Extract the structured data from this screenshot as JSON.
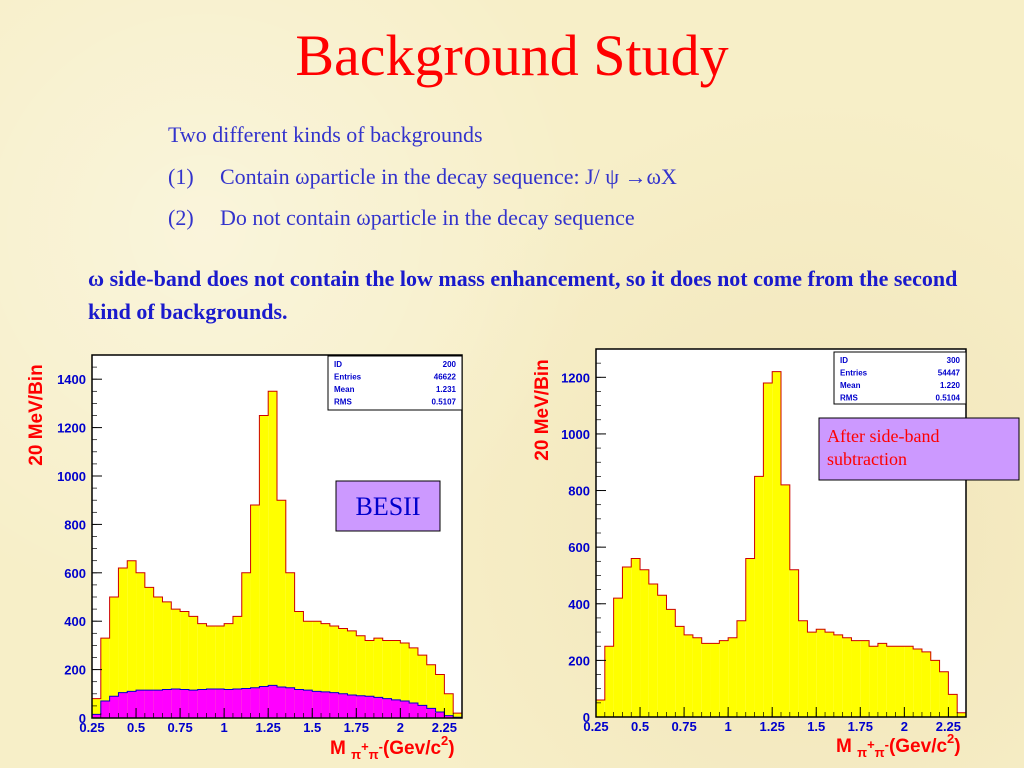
{
  "slide": {
    "title": "Background Study",
    "intro": "Two different kinds of backgrounds",
    "items": [
      {
        "num": "(1)",
        "text": "Contain ωparticle in the decay sequence: J/ ψ →ωX"
      },
      {
        "num": "(2)",
        "text": "Do not contain ωparticle in the decay sequence"
      }
    ],
    "note": "ω side-band  does not contain the low mass enhancement, so it does not come from the second kind of backgrounds."
  },
  "colors": {
    "title": "#ff0000",
    "body_text": "#3333cc",
    "histogram_fill": "#ffff00",
    "sideband_fill": "#ff00ff",
    "axis_label": "#ff0000",
    "tick_label": "#0000cc",
    "label_box": "#cc99ff"
  },
  "chart_data": [
    {
      "type": "bar",
      "title": "",
      "ylabel": "20 MeV/Bin",
      "xlabel": "M π+π-(Gev/c2)",
      "xlabel_parts": {
        "m": "M",
        "pi1": "π",
        "plus": "+",
        "pi2": "π",
        "minus": "-",
        "unit": "(Gev/c",
        "exp": "2",
        "close": ")"
      },
      "xlim": [
        0.25,
        2.35
      ],
      "ylim": [
        0,
        1500
      ],
      "xticks": [
        "0.25",
        "0.5",
        "0.75",
        "1",
        "1.25",
        "1.5",
        "1.75",
        "2",
        "2.25"
      ],
      "yticks": [
        "0",
        "200",
        "400",
        "600",
        "800",
        "1000",
        "1200",
        "1400"
      ],
      "stats": [
        {
          "label": "ID",
          "value": "200"
        },
        {
          "label": "Entries",
          "value": "46622"
        },
        {
          "label": "Mean",
          "value": "1.231"
        },
        {
          "label": "RMS",
          "value": "0.5107"
        }
      ],
      "annotation": "BESII",
      "series": [
        {
          "role": "total",
          "x": [
            0.25,
            0.3,
            0.35,
            0.4,
            0.45,
            0.5,
            0.55,
            0.6,
            0.65,
            0.7,
            0.75,
            0.8,
            0.85,
            0.9,
            0.95,
            1.0,
            1.05,
            1.1,
            1.15,
            1.2,
            1.25,
            1.3,
            1.35,
            1.4,
            1.45,
            1.5,
            1.55,
            1.6,
            1.65,
            1.7,
            1.75,
            1.8,
            1.85,
            1.9,
            1.95,
            2.0,
            2.05,
            2.1,
            2.15,
            2.2,
            2.25,
            2.3
          ],
          "values": [
            80,
            330,
            500,
            620,
            650,
            600,
            540,
            500,
            480,
            450,
            440,
            420,
            390,
            380,
            380,
            390,
            420,
            600,
            880,
            1250,
            1350,
            900,
            600,
            440,
            400,
            400,
            390,
            380,
            370,
            360,
            340,
            320,
            330,
            320,
            320,
            310,
            290,
            260,
            220,
            180,
            100,
            20
          ]
        },
        {
          "role": "sideband",
          "x": [
            0.25,
            0.3,
            0.35,
            0.4,
            0.45,
            0.5,
            0.55,
            0.6,
            0.65,
            0.7,
            0.75,
            0.8,
            0.85,
            0.9,
            0.95,
            1.0,
            1.05,
            1.1,
            1.15,
            1.2,
            1.25,
            1.3,
            1.35,
            1.4,
            1.45,
            1.5,
            1.55,
            1.6,
            1.65,
            1.7,
            1.75,
            1.8,
            1.85,
            1.9,
            1.95,
            2.0,
            2.05,
            2.1,
            2.15,
            2.2,
            2.25,
            2.3
          ],
          "values": [
            15,
            70,
            90,
            105,
            110,
            115,
            115,
            115,
            118,
            120,
            118,
            115,
            118,
            120,
            120,
            118,
            120,
            122,
            125,
            130,
            135,
            128,
            125,
            118,
            115,
            110,
            108,
            105,
            100,
            95,
            92,
            90,
            85,
            80,
            75,
            70,
            62,
            52,
            40,
            25,
            10,
            3
          ]
        }
      ]
    },
    {
      "type": "bar",
      "title": "",
      "ylabel": "20 MeV/Bin",
      "xlabel": "M π+π-(Gev/c2)",
      "xlabel_parts": {
        "m": "M",
        "pi1": "π",
        "plus": "+",
        "pi2": "π",
        "minus": "-",
        "unit": "(Gev/c",
        "exp": "2",
        "close": ")"
      },
      "xlim": [
        0.25,
        2.35
      ],
      "ylim": [
        0,
        1300
      ],
      "xticks": [
        "0.25",
        "0.5",
        "0.75",
        "1",
        "1.25",
        "1.5",
        "1.75",
        "2",
        "2.25"
      ],
      "yticks": [
        "0",
        "200",
        "400",
        "600",
        "800",
        "1000",
        "1200"
      ],
      "stats": [
        {
          "label": "ID",
          "value": "300"
        },
        {
          "label": "Entries",
          "value": "54447"
        },
        {
          "label": "Mean",
          "value": "1.220"
        },
        {
          "label": "RMS",
          "value": "0.5104"
        }
      ],
      "annotation": "After side-band subtraction",
      "annotation_lines": [
        "After side-band",
        "subtraction"
      ],
      "series": [
        {
          "role": "subtracted",
          "x": [
            0.25,
            0.3,
            0.35,
            0.4,
            0.45,
            0.5,
            0.55,
            0.6,
            0.65,
            0.7,
            0.75,
            0.8,
            0.85,
            0.9,
            0.95,
            1.0,
            1.05,
            1.1,
            1.15,
            1.2,
            1.25,
            1.3,
            1.35,
            1.4,
            1.45,
            1.5,
            1.55,
            1.6,
            1.65,
            1.7,
            1.75,
            1.8,
            1.85,
            1.9,
            1.95,
            2.0,
            2.05,
            2.1,
            2.15,
            2.2,
            2.25,
            2.3
          ],
          "values": [
            60,
            250,
            420,
            530,
            560,
            520,
            470,
            430,
            380,
            320,
            290,
            280,
            260,
            260,
            270,
            280,
            340,
            560,
            850,
            1180,
            1220,
            820,
            520,
            340,
            300,
            310,
            300,
            290,
            280,
            270,
            270,
            250,
            260,
            250,
            250,
            250,
            240,
            230,
            200,
            160,
            80,
            15
          ]
        }
      ]
    }
  ]
}
